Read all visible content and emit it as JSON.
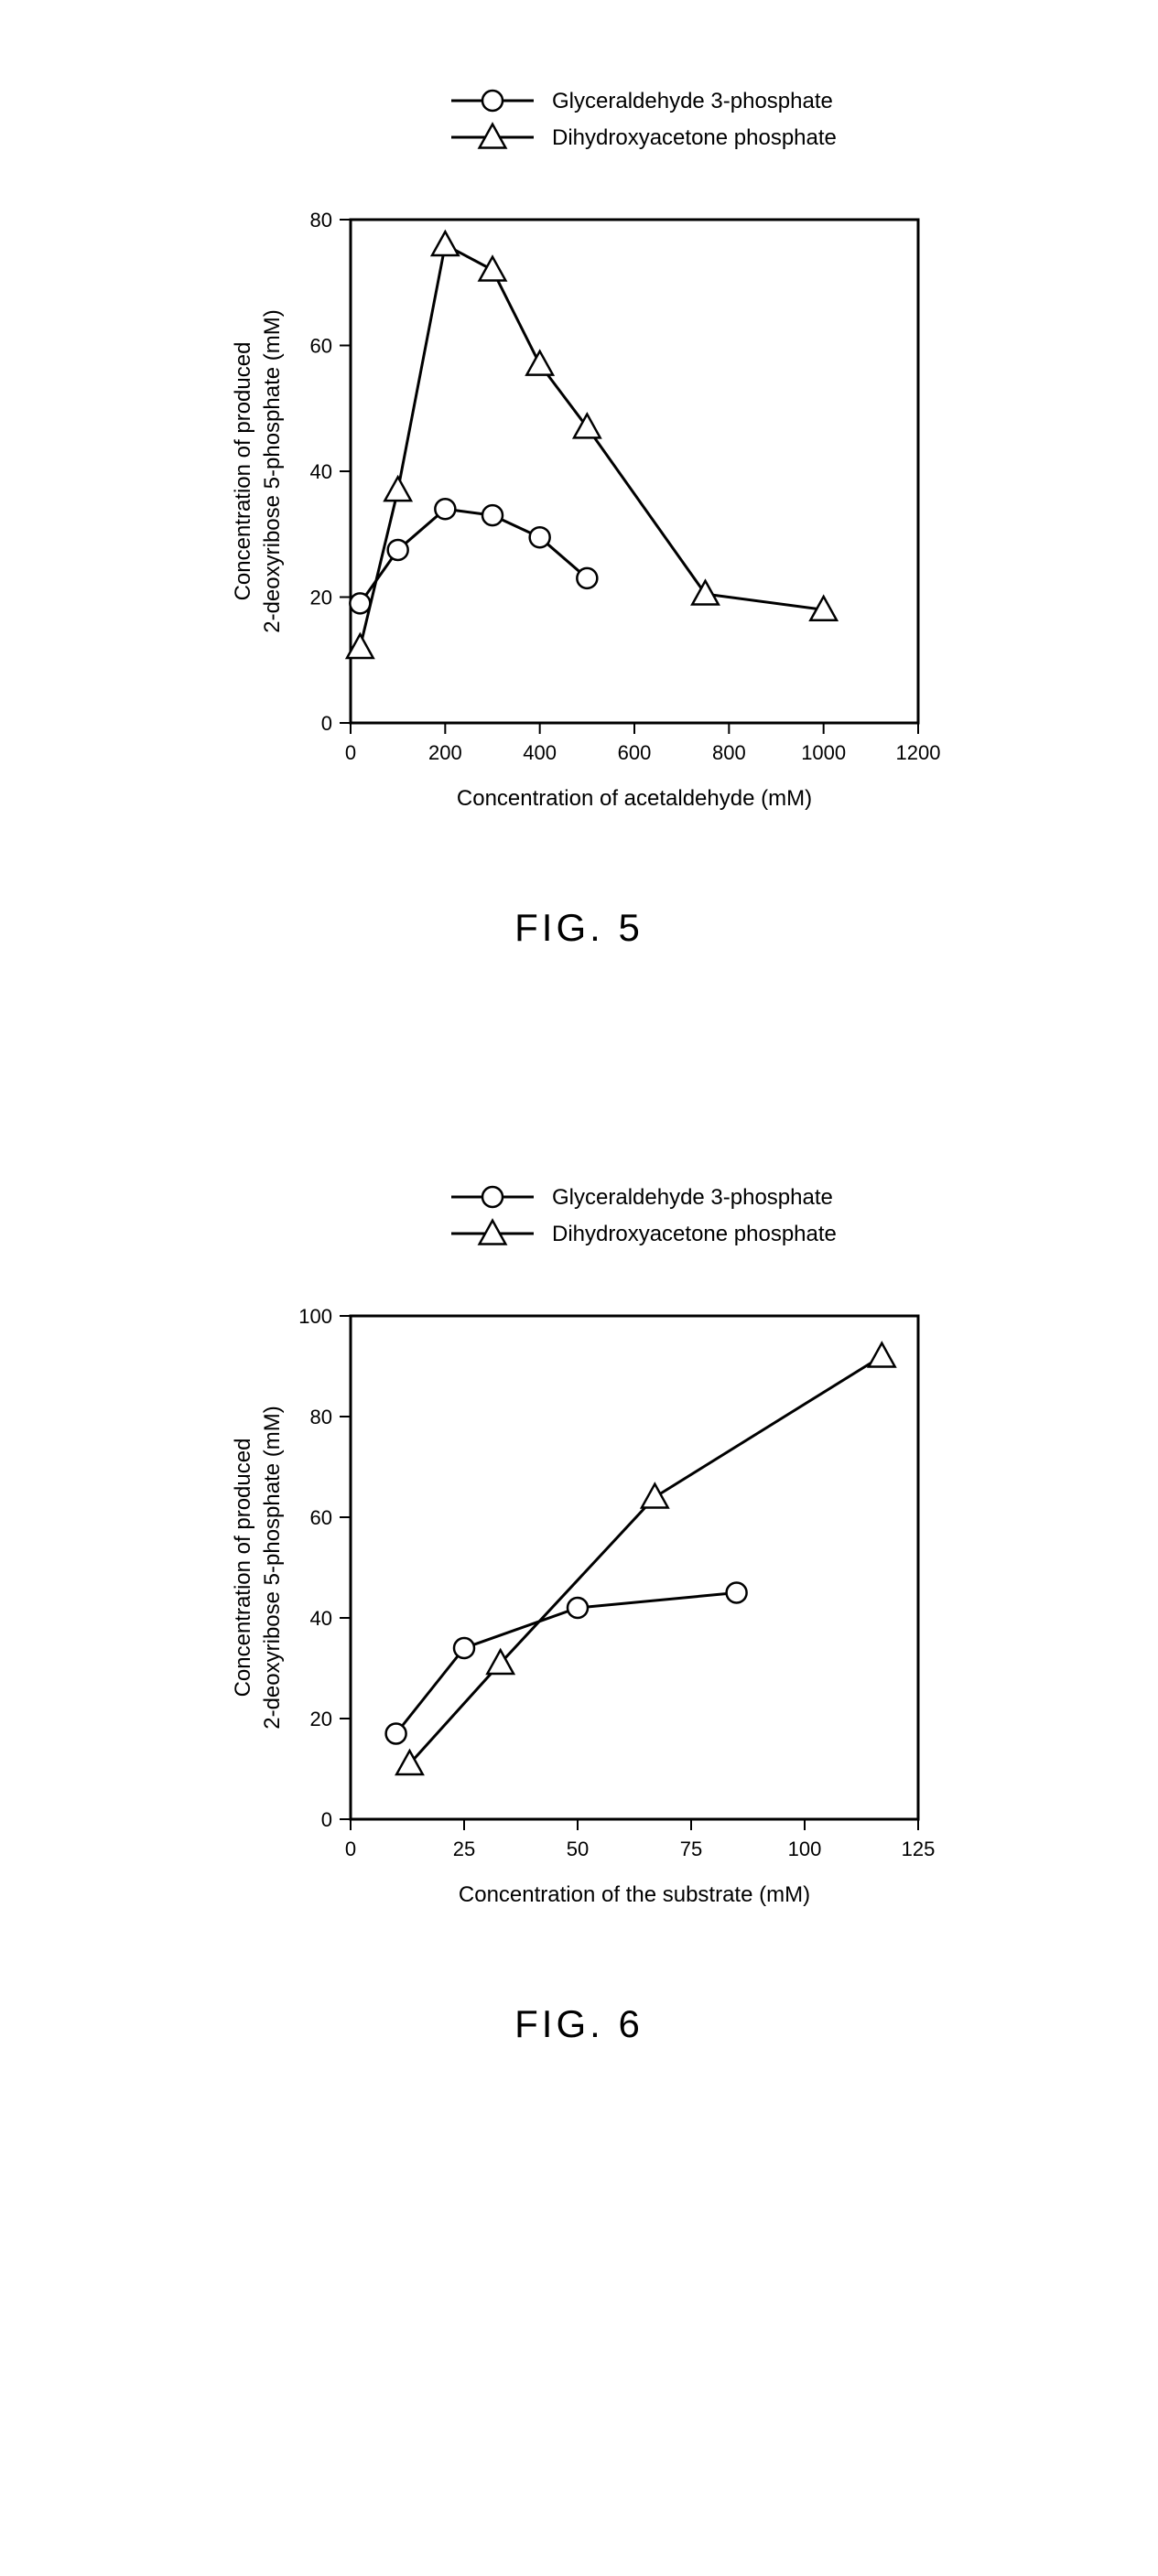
{
  "fig5": {
    "type": "line+markers",
    "title": "FIG. 5",
    "xlabel": "Concentration of acetaldehyde (mM)",
    "ylabel_line1": "Concentration of produced",
    "ylabel_line2": "2-deoxyribose 5-phosphate (mM)",
    "xlim": [
      0,
      1200
    ],
    "ylim": [
      0,
      80
    ],
    "xtick_step": 200,
    "ytick_step": 20,
    "label_fontsize": 24,
    "tick_fontsize": 22,
    "title_fontsize": 42,
    "background_color": "#ffffff",
    "axis_color": "#000000",
    "line_color": "#000000",
    "line_width": 3,
    "marker_size": 11,
    "marker_stroke": 2.5,
    "series": [
      {
        "name": "Glyceraldehyde 3-phosphate",
        "marker": "circle",
        "data": [
          {
            "x": 20,
            "y": 19
          },
          {
            "x": 100,
            "y": 27.5
          },
          {
            "x": 200,
            "y": 34
          },
          {
            "x": 300,
            "y": 33
          },
          {
            "x": 400,
            "y": 29.5
          },
          {
            "x": 500,
            "y": 23
          }
        ]
      },
      {
        "name": "Dihydroxyacetone phosphate",
        "marker": "triangle",
        "data": [
          {
            "x": 20,
            "y": 12
          },
          {
            "x": 100,
            "y": 37
          },
          {
            "x": 200,
            "y": 76
          },
          {
            "x": 300,
            "y": 72
          },
          {
            "x": 400,
            "y": 57
          },
          {
            "x": 500,
            "y": 47
          },
          {
            "x": 750,
            "y": 20.5
          },
          {
            "x": 1000,
            "y": 18
          }
        ]
      }
    ]
  },
  "fig6": {
    "type": "line+markers",
    "title": "FIG. 6",
    "xlabel": "Concentration of the substrate (mM)",
    "ylabel_line1": "Concentration of produced",
    "ylabel_line2": "2-deoxyribose 5-phosphate (mM)",
    "xlim": [
      0,
      125
    ],
    "ylim": [
      0,
      100
    ],
    "xtick_step": 25,
    "ytick_step": 20,
    "label_fontsize": 24,
    "tick_fontsize": 22,
    "title_fontsize": 42,
    "background_color": "#ffffff",
    "axis_color": "#000000",
    "line_color": "#000000",
    "line_width": 3,
    "marker_size": 11,
    "marker_stroke": 2.5,
    "series": [
      {
        "name": "Glyceraldehyde 3-phosphate",
        "marker": "circle",
        "data": [
          {
            "x": 10,
            "y": 17
          },
          {
            "x": 25,
            "y": 34
          },
          {
            "x": 50,
            "y": 42
          },
          {
            "x": 85,
            "y": 45
          }
        ]
      },
      {
        "name": "Dihydroxyacetone phosphate",
        "marker": "triangle",
        "data": [
          {
            "x": 13,
            "y": 11
          },
          {
            "x": 33,
            "y": 31
          },
          {
            "x": 67,
            "y": 64
          },
          {
            "x": 117,
            "y": 92
          }
        ]
      }
    ]
  }
}
